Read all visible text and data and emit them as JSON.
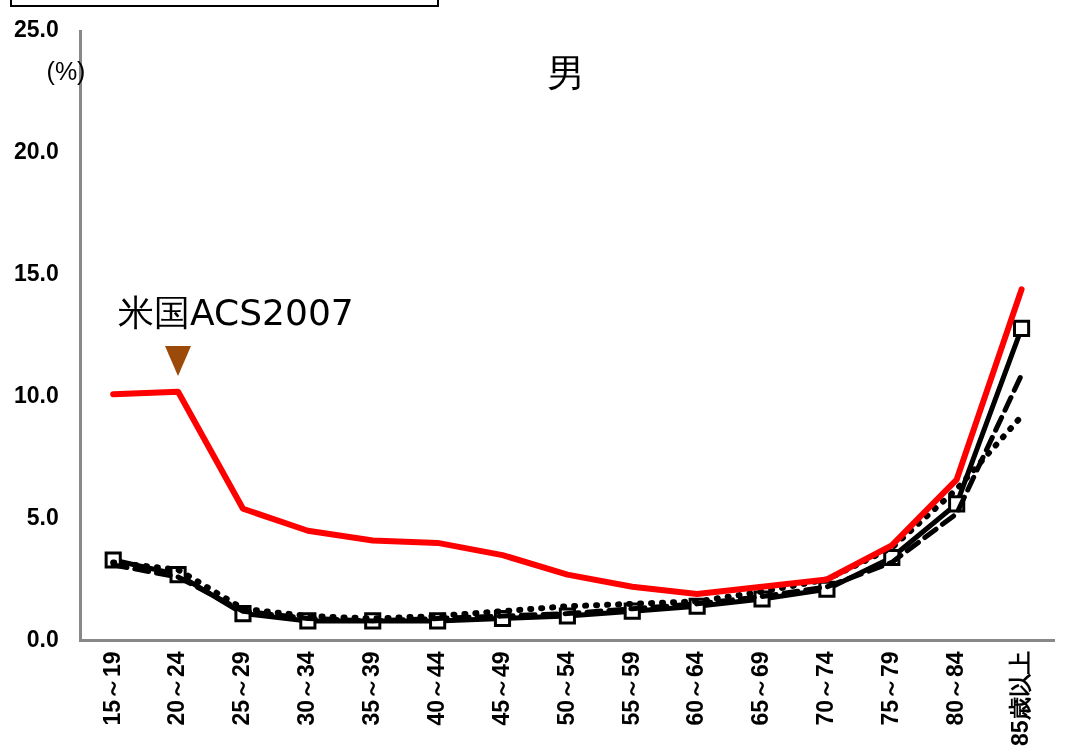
{
  "chart_data": {
    "type": "line",
    "title": "男",
    "ylabel": "(%)",
    "categories": [
      "15～19",
      "20～24",
      "25～29",
      "30～34",
      "35～39",
      "40～44",
      "45～49",
      "50～54",
      "55～59",
      "60～64",
      "65～69",
      "70～74",
      "75～79",
      "80～84",
      "85歳以上"
    ],
    "series": [
      {
        "color": "#ff0000",
        "line_style": "solid",
        "marker": "none",
        "values": [
          10.1,
          10.2,
          5.4,
          4.5,
          4.1,
          4.0,
          3.5,
          2.7,
          2.2,
          1.9,
          2.2,
          2.5,
          3.9,
          6.6,
          14.4
        ]
      },
      {
        "color": "#000000",
        "line_style": "dashed",
        "marker": "none",
        "values": [
          3.1,
          2.6,
          1.2,
          0.9,
          0.8,
          0.9,
          1.0,
          1.1,
          1.3,
          1.5,
          1.8,
          2.2,
          3.2,
          5.2,
          10.9
        ]
      },
      {
        "color": "#000000",
        "line_style": "dotted",
        "marker": "none",
        "values": [
          3.2,
          2.9,
          1.3,
          1.0,
          0.9,
          1.0,
          1.2,
          1.4,
          1.5,
          1.6,
          2.0,
          2.5,
          3.8,
          6.2,
          9.2
        ]
      },
      {
        "color": "#000000",
        "line_style": "solid",
        "marker": "square",
        "values": [
          3.3,
          2.7,
          1.1,
          0.8,
          0.8,
          0.8,
          0.9,
          1.0,
          1.2,
          1.4,
          1.7,
          2.1,
          3.4,
          5.6,
          12.8
        ]
      }
    ],
    "ylim": [
      0,
      25
    ],
    "yticks": [
      {
        "value": 0,
        "label": "0.0"
      },
      {
        "value": 5,
        "label": "5.0"
      },
      {
        "value": 10,
        "label": "10.0"
      },
      {
        "value": 15,
        "label": "15.0"
      },
      {
        "value": 20,
        "label": "20.0"
      },
      {
        "value": 25,
        "label": "25.0"
      }
    ],
    "grid": false,
    "legend": false,
    "annotations": [
      {
        "text": "米国ACS2007",
        "x": "20～24",
        "y": 10.2
      }
    ]
  }
}
